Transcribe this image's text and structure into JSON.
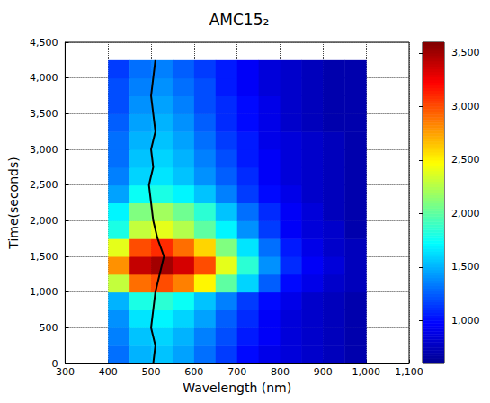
{
  "chart_data": {
    "type": "heatmap",
    "title": "AMC15₂",
    "x_label": "Wavelength (nm)",
    "y_label": "Time(seconds)",
    "xlim": [
      300,
      1100
    ],
    "xticks": [
      300,
      400,
      500,
      600,
      700,
      800,
      900,
      1000,
      1100
    ],
    "ylim": [
      0,
      4500
    ],
    "yticks": [
      0,
      500,
      1000,
      1500,
      2000,
      2500,
      3000,
      3500,
      4000,
      4500
    ],
    "grid": true,
    "x_bins": [
      400,
      450,
      500,
      550,
      600,
      650,
      700,
      750,
      800,
      850,
      900,
      950,
      1000
    ],
    "y_bins": [
      0,
      250,
      500,
      750,
      1000,
      1250,
      1500,
      1750,
      2000,
      2250,
      2500,
      2750,
      3000,
      3250,
      3500,
      3750,
      4000,
      4250
    ],
    "cells": [
      [
        1300,
        1500,
        1550,
        1450,
        1300,
        1150,
        1000,
        900,
        850,
        800,
        750,
        700
      ],
      [
        1350,
        1550,
        1600,
        1500,
        1350,
        1200,
        1050,
        950,
        850,
        800,
        750,
        700
      ],
      [
        1400,
        1650,
        1700,
        1600,
        1450,
        1250,
        1100,
        950,
        850,
        800,
        750,
        700
      ],
      [
        1500,
        1800,
        1850,
        1750,
        1550,
        1350,
        1150,
        1000,
        900,
        800,
        750,
        700
      ],
      [
        2300,
        2900,
        3000,
        2850,
        2500,
        2000,
        1600,
        1250,
        1000,
        900,
        800,
        750
      ],
      [
        2800,
        3400,
        3500,
        3350,
        3000,
        2400,
        1850,
        1400,
        1100,
        950,
        850,
        750
      ],
      [
        2400,
        3000,
        3100,
        2900,
        2600,
        2100,
        1650,
        1300,
        1050,
        900,
        800,
        750
      ],
      [
        1800,
        2300,
        2400,
        2250,
        2000,
        1700,
        1400,
        1150,
        950,
        850,
        800,
        700
      ],
      [
        1700,
        2100,
        2200,
        2050,
        1850,
        1550,
        1300,
        1100,
        950,
        850,
        750,
        700
      ],
      [
        1450,
        1750,
        1800,
        1700,
        1550,
        1350,
        1150,
        1000,
        900,
        800,
        750,
        700
      ],
      [
        1350,
        1600,
        1650,
        1550,
        1400,
        1250,
        1100,
        950,
        850,
        800,
        750,
        700
      ],
      [
        1300,
        1550,
        1600,
        1500,
        1350,
        1200,
        1050,
        950,
        850,
        800,
        750,
        700
      ],
      [
        1300,
        1500,
        1550,
        1450,
        1300,
        1150,
        1050,
        900,
        850,
        800,
        750,
        700
      ],
      [
        1250,
        1450,
        1500,
        1400,
        1250,
        1100,
        1000,
        900,
        800,
        750,
        700,
        700
      ],
      [
        1200,
        1400,
        1450,
        1350,
        1200,
        1100,
        1000,
        900,
        800,
        750,
        700,
        700
      ],
      [
        1200,
        1350,
        1400,
        1300,
        1200,
        1050,
        950,
        850,
        800,
        750,
        700,
        700
      ],
      [
        1150,
        1300,
        1350,
        1250,
        1150,
        1050,
        950,
        850,
        800,
        750,
        700,
        700
      ]
    ],
    "colorbar": {
      "range": [
        600,
        3600
      ],
      "ticks": [
        1000,
        1500,
        2000,
        2500,
        3000,
        3500
      ]
    },
    "peak_line": {
      "color": "#000000",
      "time": [
        0,
        250,
        500,
        750,
        1000,
        1250,
        1500,
        1750,
        2000,
        2250,
        2500,
        2750,
        3000,
        3250,
        3500,
        3750,
        4000,
        4250
      ],
      "wavelength": [
        505,
        510,
        500,
        505,
        510,
        520,
        530,
        515,
        505,
        500,
        495,
        505,
        500,
        510,
        505,
        500,
        505,
        510
      ]
    }
  }
}
